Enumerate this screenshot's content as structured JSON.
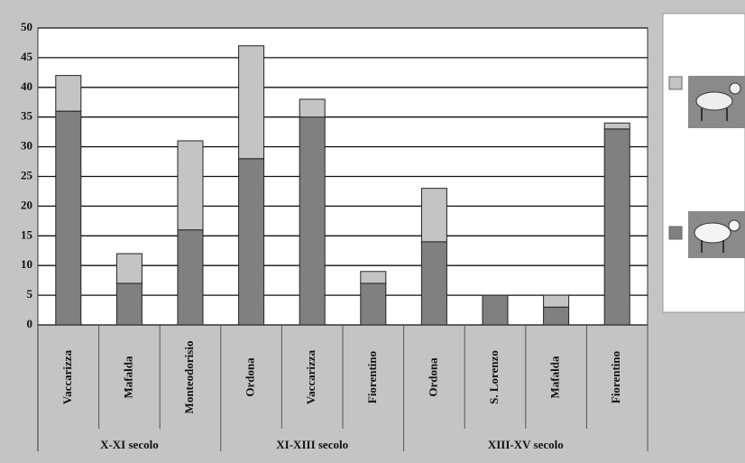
{
  "chart_data": {
    "type": "stacked-bar",
    "category_groups": [
      {
        "label": "X-XI secolo",
        "categories": [
          "Vaccarizza",
          "Mafalda",
          "Monteodorisio"
        ]
      },
      {
        "label": "XI-XIII secolo",
        "categories": [
          "Ordona",
          "Vaccarizza",
          "Fiorentino"
        ]
      },
      {
        "label": "XIII-XV secolo",
        "categories": [
          "Ordona",
          "S. Lorenzo",
          "Mafalda",
          "Fiorentino"
        ]
      }
    ],
    "series": [
      {
        "color": "#808080",
        "values": [
          36,
          7,
          16,
          28,
          35,
          7,
          14,
          5,
          3,
          33
        ]
      },
      {
        "color": "#c4c4c4",
        "values": [
          6,
          5,
          15,
          19,
          3,
          2,
          9,
          0,
          2,
          1
        ]
      }
    ],
    "ylim": [
      0,
      50
    ],
    "yticks": [
      0,
      5,
      10,
      15,
      20,
      25,
      30,
      35,
      40,
      45,
      50
    ],
    "grid": true
  }
}
